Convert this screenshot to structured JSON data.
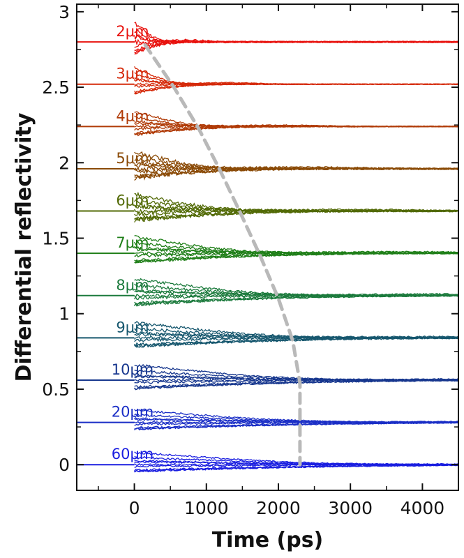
{
  "chart_data": {
    "type": "line",
    "title": "",
    "xlabel": "Time (ps)",
    "ylabel": "Differential reflectivity",
    "xlim": [
      -800,
      4500
    ],
    "ylim": [
      -0.17,
      3.05
    ],
    "xticks": [
      0,
      1000,
      2000,
      3000,
      4000
    ],
    "xtick_labels": [
      "0",
      "1000",
      "2000",
      "3000",
      "4000"
    ],
    "yticks": [
      0,
      0.5,
      1,
      1.5,
      2,
      2.5,
      3
    ],
    "ytick_labels": [
      "0",
      "0.5",
      "1",
      "1.5",
      "2",
      "2.5",
      "3"
    ],
    "grid": false,
    "legend": "inline labels",
    "series": [
      {
        "name": "2μm",
        "baseline": 2.8,
        "color": "#e8120e",
        "amplitude": 0.13,
        "decay_ps": 350,
        "noise": 0.012
      },
      {
        "name": "3μm",
        "baseline": 2.52,
        "color": "#d52a0a",
        "amplitude": 0.11,
        "decay_ps": 600,
        "noise": 0.006
      },
      {
        "name": "4μm",
        "baseline": 2.24,
        "color": "#b03b07",
        "amplitude": 0.1,
        "decay_ps": 900,
        "noise": 0.007
      },
      {
        "name": "5μm",
        "baseline": 1.96,
        "color": "#8a4a06",
        "amplitude": 0.11,
        "decay_ps": 1100,
        "noise": 0.012
      },
      {
        "name": "6μm",
        "baseline": 1.68,
        "color": "#526a06",
        "amplitude": 0.11,
        "decay_ps": 1400,
        "noise": 0.011
      },
      {
        "name": "7μm",
        "baseline": 1.4,
        "color": "#1f7f18",
        "amplitude": 0.11,
        "decay_ps": 1700,
        "noise": 0.008
      },
      {
        "name": "8μm",
        "baseline": 1.12,
        "color": "#1b7a3c",
        "amplitude": 0.11,
        "decay_ps": 2000,
        "noise": 0.008
      },
      {
        "name": "9μm",
        "baseline": 0.84,
        "color": "#16576e",
        "amplitude": 0.1,
        "decay_ps": 2200,
        "noise": 0.008
      },
      {
        "name": "10μm",
        "baseline": 0.56,
        "color": "#17378e",
        "amplitude": 0.1,
        "decay_ps": 2400,
        "noise": 0.006
      },
      {
        "name": "20μm",
        "baseline": 0.28,
        "color": "#1a2ec6",
        "amplitude": 0.08,
        "decay_ps": 2600,
        "noise": 0.005
      },
      {
        "name": "60μm",
        "baseline": 0.0,
        "color": "#1a1ee0",
        "amplitude": 0.08,
        "decay_ps": 2800,
        "noise": 0.005
      }
    ],
    "guide_curve": {
      "style": "dashed",
      "color": "#b9b9b9",
      "points": [
        [
          150,
          2.78
        ],
        [
          550,
          2.5
        ],
        [
          900,
          2.22
        ],
        [
          1200,
          1.94
        ],
        [
          1480,
          1.66
        ],
        [
          1750,
          1.38
        ],
        [
          2000,
          1.1
        ],
        [
          2200,
          0.82
        ],
        [
          2300,
          0.54
        ],
        [
          2300,
          0.26
        ],
        [
          2300,
          0.0
        ]
      ]
    }
  }
}
